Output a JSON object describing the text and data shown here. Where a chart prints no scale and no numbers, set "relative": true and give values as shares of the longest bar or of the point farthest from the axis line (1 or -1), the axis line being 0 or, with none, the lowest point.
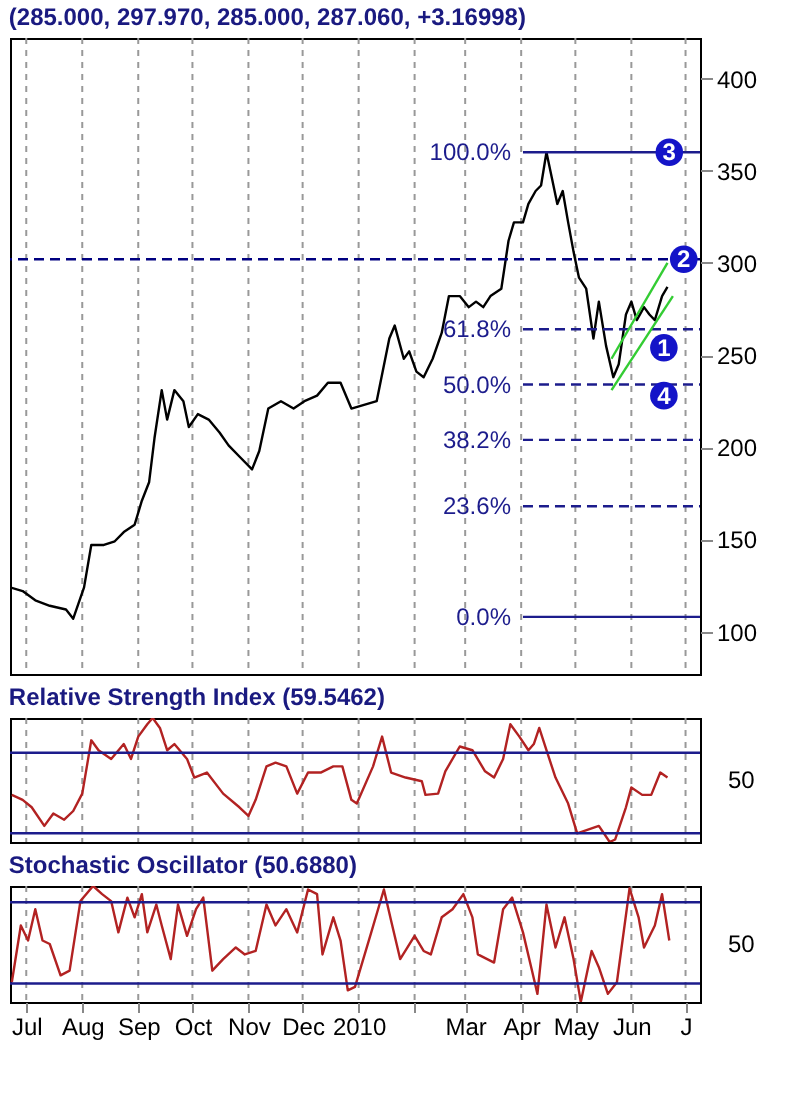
{
  "chart_data": [
    {
      "type": "line",
      "title": "(285.000, 297.970, 285.000, 287.060, +3.16998)",
      "xlim": [
        "2009-06-22",
        "2010-07-09"
      ],
      "xticks": [
        {
          "value": "2009-07-01",
          "label": null
        },
        {
          "value": "2009-08-01",
          "label": null
        },
        {
          "value": "2009-09-01",
          "label": null
        },
        {
          "value": "2009-10-01",
          "label": null
        },
        {
          "value": "2009-11-01",
          "label": null
        },
        {
          "value": "2009-12-01",
          "label": null
        },
        {
          "value": "2010-01-01",
          "label": null
        },
        {
          "value": "2010-02-01",
          "label": null
        },
        {
          "value": "2010-03-01",
          "label": null
        },
        {
          "value": "2010-04-01",
          "label": null
        },
        {
          "value": "2010-05-01",
          "label": null
        },
        {
          "value": "2010-06-01",
          "label": null
        },
        {
          "value": "2010-07-01",
          "label": null
        }
      ],
      "ylim": [
        77,
        422
      ],
      "yticks": [
        100,
        150,
        200,
        250,
        300,
        350,
        400
      ],
      "grid": "x",
      "tick_labels": "y",
      "series": [
        {
          "color": "#000000",
          "x": [
            "2009-06-22",
            "2009-06-29",
            "2009-07-06",
            "2009-07-14",
            "2009-07-23",
            "2009-07-27",
            "2009-08-02",
            "2009-08-06",
            "2009-08-13",
            "2009-08-19",
            "2009-08-24",
            "2009-08-30",
            "2009-09-03",
            "2009-09-07",
            "2009-09-10",
            "2009-09-14",
            "2009-09-17",
            "2009-09-21",
            "2009-09-26",
            "2009-09-29",
            "2009-10-04",
            "2009-10-10",
            "2009-10-16",
            "2009-10-21",
            "2009-10-27",
            "2009-11-03",
            "2009-11-07",
            "2009-11-12",
            "2009-11-19",
            "2009-11-26",
            "2009-12-02",
            "2009-12-09",
            "2009-12-15",
            "2009-12-22",
            "2009-12-28",
            "2010-01-11",
            "2010-01-18",
            "2010-01-21",
            "2010-01-26",
            "2010-01-29",
            "2010-02-02",
            "2010-02-06",
            "2010-02-11",
            "2010-02-16",
            "2010-02-20",
            "2010-02-26",
            "2010-03-03",
            "2010-03-07",
            "2010-03-11",
            "2010-03-15",
            "2010-03-21",
            "2010-03-25",
            "2010-03-28",
            "2010-04-02",
            "2010-04-05",
            "2010-04-09",
            "2010-04-12",
            "2010-04-15",
            "2010-04-18",
            "2010-04-21",
            "2010-04-24",
            "2010-04-27",
            "2010-04-30",
            "2010-05-03",
            "2010-05-07",
            "2010-05-11",
            "2010-05-14",
            "2010-05-18",
            "2010-05-22",
            "2010-05-25",
            "2010-05-29",
            "2010-06-01",
            "2010-06-04",
            "2010-06-08",
            "2010-06-11",
            "2010-06-14",
            "2010-06-18",
            "2010-06-21"
          ],
          "values": [
            124,
            122,
            117,
            114,
            112,
            107,
            124,
            147,
            147,
            149,
            154,
            158,
            171,
            181,
            205,
            231,
            215,
            231,
            225,
            211,
            218,
            215,
            208,
            201,
            195,
            188,
            198,
            221,
            225,
            221,
            225,
            228,
            235,
            235,
            221,
            225,
            259,
            266,
            248,
            252,
            241,
            238,
            248,
            262,
            282,
            282,
            276,
            279,
            276,
            282,
            286,
            312,
            322,
            322,
            332,
            339,
            342,
            360,
            346,
            332,
            339,
            322,
            306,
            292,
            286,
            259,
            279,
            255,
            238,
            245,
            272,
            279,
            269,
            276,
            272,
            269,
            282,
            287
          ]
        },
        {
          "name": "100.0%",
          "color": "#1c1c8c",
          "line_style": "solid",
          "x": [
            "2010-04-02",
            "2010-07-09"
          ],
          "values": [
            360,
            360
          ]
        },
        {
          "name": "61.8%",
          "color": "#1c1c8c",
          "line_style": "dashed",
          "x": [
            "2010-04-02",
            "2010-07-09"
          ],
          "values": [
            264,
            264
          ]
        },
        {
          "name": "50.0%",
          "color": "#1c1c8c",
          "line_style": "dashed",
          "x": [
            "2010-04-02",
            "2010-07-09"
          ],
          "values": [
            234,
            234
          ]
        },
        {
          "name": "38.2%",
          "color": "#1c1c8c",
          "line_style": "dashed",
          "x": [
            "2010-04-02",
            "2010-07-09"
          ],
          "values": [
            204,
            204
          ]
        },
        {
          "name": "23.6%",
          "color": "#1c1c8c",
          "line_style": "dashed",
          "x": [
            "2010-04-02",
            "2010-07-09"
          ],
          "values": [
            168,
            168
          ]
        },
        {
          "name": "0.0%",
          "color": "#1c1c8c",
          "line_style": "solid",
          "x": [
            "2010-04-02",
            "2010-07-09"
          ],
          "values": [
            108,
            108
          ]
        },
        {
          "color": "#33cc33",
          "x": [
            "2010-05-21",
            "2010-06-21"
          ],
          "values": [
            248,
            300
          ]
        },
        {
          "color": "#33cc33",
          "x": [
            "2010-05-21",
            "2010-06-24"
          ],
          "values": [
            231,
            282
          ]
        }
      ],
      "ref_lines": [
        {
          "axis": "y",
          "value": 302,
          "line_style": "dashed",
          "color": "#000080"
        }
      ],
      "annotations": [
        {
          "text": "1",
          "x": "2010-06-19",
          "y": 254
        },
        {
          "text": "2",
          "x": "2010-06-30",
          "y": 302
        },
        {
          "text": "3",
          "x": "2010-06-22",
          "y": 360
        },
        {
          "text": "4",
          "x": "2010-06-19",
          "y": 228
        }
      ]
    },
    {
      "type": "line",
      "title": "Relative Strength Index (59.5462)",
      "xlim": [
        "2009-06-22",
        "2010-07-09"
      ],
      "xticks": [
        {
          "value": "2009-07-01",
          "label": null
        },
        {
          "value": "2009-08-01",
          "label": null
        },
        {
          "value": "2009-09-01",
          "label": null
        },
        {
          "value": "2009-10-01",
          "label": null
        },
        {
          "value": "2009-11-01",
          "label": null
        },
        {
          "value": "2009-12-01",
          "label": null
        },
        {
          "value": "2010-01-01",
          "label": null
        },
        {
          "value": "2010-02-01",
          "label": null
        },
        {
          "value": "2010-03-01",
          "label": null
        },
        {
          "value": "2010-04-01",
          "label": null
        },
        {
          "value": "2010-05-01",
          "label": null
        },
        {
          "value": "2010-06-01",
          "label": null
        },
        {
          "value": "2010-07-01",
          "label": null
        }
      ],
      "relative": true,
      "grid": "x",
      "tick_labels": "y",
      "annotations": [
        "50"
      ],
      "series": [
        {
          "color": "#b22222",
          "x": [
            "2009-06-23",
            "2009-06-29",
            "2009-07-04",
            "2009-07-11",
            "2009-07-16",
            "2009-07-22",
            "2009-07-27",
            "2009-08-01",
            "2009-08-06",
            "2009-08-10",
            "2009-08-17",
            "2009-08-24",
            "2009-08-28",
            "2009-09-01",
            "2009-09-06",
            "2009-09-09",
            "2009-09-13",
            "2009-09-17",
            "2009-09-21",
            "2009-09-28",
            "2009-10-02",
            "2009-10-09",
            "2009-10-18",
            "2009-10-27",
            "2009-11-01",
            "2009-11-05",
            "2009-11-11",
            "2009-11-16",
            "2009-11-22",
            "2009-11-28",
            "2009-12-04",
            "2009-12-11",
            "2009-12-18",
            "2009-12-23",
            "2009-12-28",
            "2009-12-31",
            "2010-01-09",
            "2010-01-14",
            "2010-01-19",
            "2010-01-27",
            "2010-02-05",
            "2010-02-07",
            "2010-02-14",
            "2010-02-18",
            "2010-02-26",
            "2010-03-05",
            "2010-03-12",
            "2010-03-17",
            "2010-03-22",
            "2010-03-26",
            "2010-03-31",
            "2010-04-05",
            "2010-04-08",
            "2010-04-11",
            "2010-04-15",
            "2010-04-20",
            "2010-04-27",
            "2010-05-02",
            "2010-05-08",
            "2010-05-14",
            "2010-05-20",
            "2010-05-23",
            "2010-05-29",
            "2010-06-01",
            "2010-06-07",
            "2010-06-12",
            "2010-06-17",
            "2010-06-21"
          ],
          "values": [
            0.38,
            0.34,
            0.28,
            0.13,
            0.23,
            0.18,
            0.25,
            0.39,
            0.82,
            0.74,
            0.67,
            0.79,
            0.67,
            0.85,
            0.95,
            1,
            0.92,
            0.74,
            0.79,
            0.67,
            0.52,
            0.56,
            0.39,
            0.28,
            0.21,
            0.34,
            0.61,
            0.64,
            0.61,
            0.39,
            0.56,
            0.56,
            0.61,
            0.61,
            0.34,
            0.31,
            0.61,
            0.85,
            0.56,
            0.52,
            0.49,
            0.38,
            0.39,
            0.57,
            0.77,
            0.74,
            0.57,
            0.52,
            0.67,
            0.95,
            0.85,
            0.74,
            0.79,
            0.92,
            0.74,
            0.52,
            0.31,
            0.07,
            0.1,
            0.13,
            0,
            0.02,
            0.28,
            0.44,
            0.38,
            0.38,
            0.56,
            0.52
          ]
        }
      ],
      "ref_lines": [
        {
          "axis": "y",
          "value": 0.72,
          "line_style": "solid",
          "color": "#1c1c8c"
        },
        {
          "axis": "y",
          "value": 0.07,
          "line_style": "solid",
          "color": "#1c1c8c"
        }
      ]
    },
    {
      "type": "line",
      "title": "Stochastic Oscillator (50.6880)",
      "xlim": [
        "2009-06-22",
        "2010-07-09"
      ],
      "xticks": [
        {
          "value": "2009-07-01",
          "label": "Jul"
        },
        {
          "value": "2009-08-01",
          "label": "Aug"
        },
        {
          "value": "2009-09-01",
          "label": "Sep"
        },
        {
          "value": "2009-10-01",
          "label": "Oct"
        },
        {
          "value": "2009-11-01",
          "label": "Nov"
        },
        {
          "value": "2009-12-01",
          "label": "Dec"
        },
        {
          "value": "2010-01-01",
          "label": "2010"
        },
        {
          "value": "2010-02-01",
          "label": null
        },
        {
          "value": "2010-03-01",
          "label": "Mar"
        },
        {
          "value": "2010-04-01",
          "label": "Apr"
        },
        {
          "value": "2010-05-01",
          "label": "May"
        },
        {
          "value": "2010-06-01",
          "label": "Jun"
        },
        {
          "value": "2010-07-01",
          "label": "J"
        }
      ],
      "relative": true,
      "grid": "x",
      "annotations": [
        "50"
      ],
      "series": [
        {
          "color": "#b22222",
          "x": [
            "2009-06-23",
            "2009-06-28",
            "2009-07-02",
            "2009-07-06",
            "2009-07-10",
            "2009-07-14",
            "2009-07-20",
            "2009-07-25",
            "2009-07-31",
            "2009-08-07",
            "2009-08-12",
            "2009-08-17",
            "2009-08-21",
            "2009-08-26",
            "2009-08-30",
            "2009-09-03",
            "2009-09-06",
            "2009-09-11",
            "2009-09-14",
            "2009-09-19",
            "2009-09-23",
            "2009-09-28",
            "2009-10-03",
            "2009-10-07",
            "2009-10-12",
            "2009-10-18",
            "2009-10-25",
            "2009-10-30",
            "2009-11-05",
            "2009-11-11",
            "2009-11-16",
            "2009-11-22",
            "2009-11-28",
            "2009-12-04",
            "2009-12-09",
            "2009-12-12",
            "2009-12-18",
            "2009-12-22",
            "2009-12-26",
            "2009-12-30",
            "2010-01-08",
            "2010-01-15",
            "2010-01-19",
            "2010-01-24",
            "2010-02-01",
            "2010-02-06",
            "2010-02-10",
            "2010-02-16",
            "2010-02-22",
            "2010-02-28",
            "2010-03-05",
            "2010-03-08",
            "2010-03-17",
            "2010-03-22",
            "2010-03-27",
            "2010-04-02",
            "2010-04-07",
            "2010-04-10",
            "2010-04-15",
            "2010-04-20",
            "2010-04-25",
            "2010-04-30",
            "2010-05-04",
            "2010-05-10",
            "2010-05-14",
            "2010-05-19",
            "2010-05-24",
            "2010-05-31",
            "2010-06-05",
            "2010-06-08",
            "2010-06-14",
            "2010-06-18",
            "2010-06-22"
          ],
          "values": [
            0.17,
            0.66,
            0.53,
            0.8,
            0.53,
            0.5,
            0.23,
            0.27,
            0.87,
            1,
            0.93,
            0.87,
            0.6,
            0.9,
            0.73,
            0.93,
            0.6,
            0.84,
            0.66,
            0.37,
            0.84,
            0.57,
            0.8,
            0.9,
            0.27,
            0.37,
            0.47,
            0.41,
            0.44,
            0.84,
            0.66,
            0.8,
            0.6,
            0.97,
            0.93,
            0.41,
            0.73,
            0.53,
            0.1,
            0.13,
            0.6,
            0.97,
            0.7,
            0.37,
            0.57,
            0.44,
            0.41,
            0.73,
            0.8,
            0.93,
            0.73,
            0.41,
            0.34,
            0.8,
            0.9,
            0.6,
            0.27,
            0.07,
            0.84,
            0.47,
            0.73,
            0.37,
            0,
            0.44,
            0.3,
            0.07,
            0.17,
            0.98,
            0.73,
            0.47,
            0.66,
            0.93,
            0.53
          ]
        }
      ],
      "ref_lines": [
        {
          "axis": "y",
          "value": 0.86,
          "line_style": "solid",
          "color": "#1c1c8c"
        },
        {
          "axis": "y",
          "value": 0.16,
          "line_style": "solid",
          "color": "#1c1c8c"
        }
      ]
    }
  ]
}
